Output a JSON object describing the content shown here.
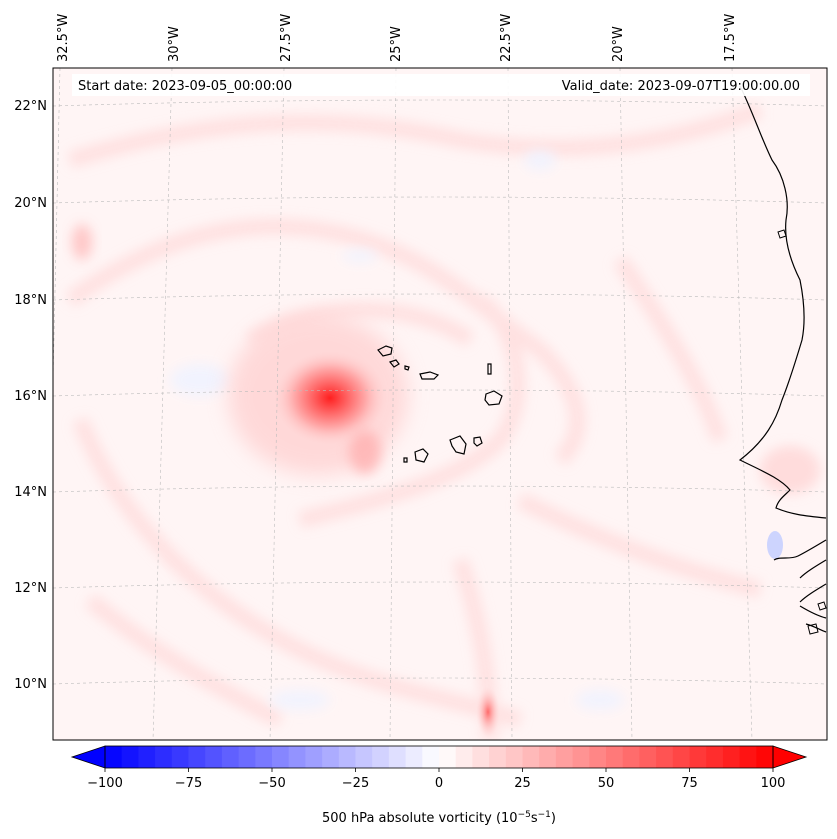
{
  "map": {
    "start_label": "Start date: 2023-09-05_00:00:00",
    "valid_label": "Valid_date: 2023-09-07T19:00:00.00",
    "lon_labels": [
      "32.5°W",
      "30°W",
      "27.5°W",
      "25°W",
      "22.5°W",
      "20°W",
      "17.5°W"
    ],
    "lat_labels": [
      "22°N",
      "20°N",
      "18°N",
      "16°N",
      "14°N",
      "12°N",
      "10°N"
    ],
    "colorbar": {
      "title": "500 hPa absolute vorticity (10",
      "title_sup1": "−5",
      "title_mid": "s",
      "title_sup2": "−1",
      "title_end": ")",
      "ticks": [
        "−100",
        "−75",
        "−50",
        "−25",
        "0",
        "25",
        "50",
        "75",
        "100"
      ],
      "min": -100,
      "max": 100,
      "levels": 40,
      "negative_color": "#0000ff",
      "positive_color": "#ff0000"
    },
    "colors": {
      "coastline": "#000000",
      "grid": "#bbbbbb",
      "background": "#fff5f5"
    }
  }
}
